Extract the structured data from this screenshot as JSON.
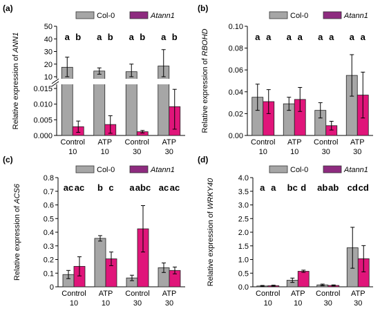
{
  "colors": {
    "col0": "#a6a6a6",
    "atann1": "#e0157a",
    "atann1_legend": "#8e2b7f",
    "axis": "#000000"
  },
  "chart_data": [
    {
      "id": "a",
      "panel_label": "(a)",
      "type": "bar",
      "ylabel_pre": "Relative expression of ",
      "ylabel_gene": "ANN1",
      "categories": [
        [
          "Control",
          "10"
        ],
        [
          "ATP",
          "10"
        ],
        [
          "Control",
          "30"
        ],
        [
          "ATP",
          "30"
        ]
      ],
      "broken_axis": true,
      "ylim_lower": [
        0,
        0.015
      ],
      "ylim_upper": [
        10,
        50
      ],
      "yticks_lower": [
        "0.000",
        "0.005",
        "0.010",
        "0.015"
      ],
      "yticks_upper": [
        "10",
        "20",
        "30",
        "40",
        "50"
      ],
      "series": [
        {
          "name": "Col-0",
          "values": [
            17.5,
            14.5,
            14.0,
            18.5
          ],
          "errors": [
            8.0,
            2.5,
            6.0,
            13.0
          ],
          "sig": [
            "a",
            "a",
            "a",
            "a"
          ]
        },
        {
          "name": "Atann1",
          "values": [
            0.0028,
            0.0035,
            0.0012,
            0.0092
          ],
          "errors": [
            0.0018,
            0.0028,
            0.0004,
            0.0072
          ],
          "sig": [
            "b",
            "b",
            "b",
            "b"
          ]
        }
      ],
      "legend": [
        "Col-0",
        "Atann1"
      ]
    },
    {
      "id": "b",
      "panel_label": "(b)",
      "type": "bar",
      "ylabel_pre": "Relative expression of ",
      "ylabel_gene": "RBOHD",
      "categories": [
        [
          "Control",
          "10"
        ],
        [
          "ATP",
          "10"
        ],
        [
          "Control",
          "30"
        ],
        [
          "ATP",
          "30"
        ]
      ],
      "ylim": [
        0,
        0.1
      ],
      "yticks": [
        "0.00",
        "0.02",
        "0.04",
        "0.06",
        "0.08",
        "0.10"
      ],
      "series": [
        {
          "name": "Col-0",
          "values": [
            0.035,
            0.029,
            0.023,
            0.055
          ],
          "errors": [
            0.012,
            0.006,
            0.007,
            0.019
          ],
          "sig": [
            "a",
            "a",
            "a",
            "a"
          ]
        },
        {
          "name": "Atann1",
          "values": [
            0.031,
            0.033,
            0.009,
            0.037
          ],
          "errors": [
            0.011,
            0.011,
            0.004,
            0.021
          ],
          "sig": [
            "a",
            "a",
            "a",
            "a"
          ]
        }
      ],
      "legend": [
        "Col-0",
        "Atann1"
      ]
    },
    {
      "id": "c",
      "panel_label": "(c)",
      "type": "bar",
      "ylabel_pre": "Relative expression of ",
      "ylabel_gene": "ACS6",
      "categories": [
        [
          "Control",
          "10"
        ],
        [
          "ATP",
          "10"
        ],
        [
          "Control",
          "30"
        ],
        [
          "ATP",
          "30"
        ]
      ],
      "ylim": [
        0,
        0.8
      ],
      "yticks": [
        "0",
        "0.1",
        "0.2",
        "0.3",
        "0.4",
        "0.5",
        "0.6",
        "0.7",
        "0.8"
      ],
      "series": [
        {
          "name": "Col-0",
          "values": [
            0.09,
            0.355,
            0.065,
            0.14
          ],
          "errors": [
            0.03,
            0.02,
            0.02,
            0.035
          ],
          "sig": [
            "ac",
            "b",
            "a",
            "ac"
          ]
        },
        {
          "name": "Atann1",
          "values": [
            0.15,
            0.205,
            0.425,
            0.12
          ],
          "errors": [
            0.07,
            0.05,
            0.17,
            0.025
          ],
          "sig": [
            "ac",
            "c",
            "abc",
            "ac"
          ]
        }
      ],
      "legend": [
        "Col-0",
        "Atann1"
      ]
    },
    {
      "id": "d",
      "panel_label": "(d)",
      "type": "bar",
      "ylabel_pre": "Relative expression of ",
      "ylabel_gene": "WRKY40",
      "categories": [
        [
          "Control",
          "10"
        ],
        [
          "ATP",
          "10"
        ],
        [
          "Control",
          "30"
        ],
        [
          "ATP",
          "30"
        ]
      ],
      "ylim": [
        0,
        4.0
      ],
      "yticks": [
        "0.0",
        "0.5",
        "1.0",
        "1.5",
        "2.0",
        "2.5",
        "3.0",
        "3.5",
        "4.0"
      ],
      "series": [
        {
          "name": "Col-0",
          "values": [
            0.03,
            0.24,
            0.07,
            1.43
          ],
          "errors": [
            0.02,
            0.08,
            0.03,
            0.75
          ],
          "sig": [
            "a",
            "bc",
            "ab",
            "cd"
          ]
        },
        {
          "name": "Atann1",
          "values": [
            0.04,
            0.57,
            0.05,
            1.03
          ],
          "errors": [
            0.02,
            0.04,
            0.02,
            0.48
          ],
          "sig": [
            "a",
            "d",
            "ab",
            "cd"
          ]
        }
      ],
      "legend": [
        "Col-0",
        "Atann1"
      ]
    }
  ]
}
